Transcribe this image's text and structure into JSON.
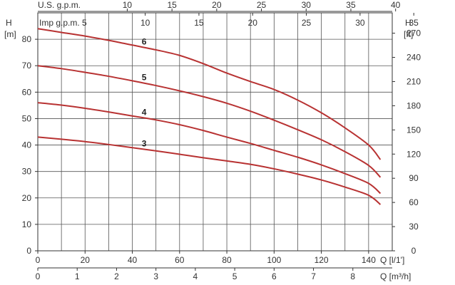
{
  "chart_data": {
    "type": "line",
    "x": [
      0,
      10,
      20,
      30,
      40,
      50,
      60,
      70,
      80,
      90,
      100,
      110,
      120,
      130,
      140,
      145
    ],
    "series": [
      {
        "name": "3",
        "values": [
          43,
          42.2,
          41.3,
          40.2,
          39,
          37.8,
          36.5,
          35.2,
          34,
          32.7,
          31,
          29,
          26.8,
          24.1,
          21,
          17.5
        ]
      },
      {
        "name": "4",
        "values": [
          56,
          55.1,
          53.9,
          52.5,
          51,
          49.5,
          47.7,
          45.5,
          43,
          40.6,
          38,
          35.4,
          32.5,
          29.2,
          25.5,
          21.7
        ]
      },
      {
        "name": "5",
        "values": [
          70,
          68.9,
          67.5,
          66,
          64.3,
          62.5,
          60.5,
          58.3,
          55.8,
          52.8,
          49.4,
          45.8,
          42,
          37.5,
          32.3,
          27.8
        ]
      },
      {
        "name": "6",
        "values": [
          84,
          82.6,
          81.2,
          79.6,
          77.8,
          76,
          73.9,
          70.8,
          67.2,
          64,
          61,
          57,
          52.2,
          46.5,
          40,
          34.5
        ]
      }
    ],
    "line_color": "#b83232",
    "xlim": [
      0,
      150
    ],
    "ylim": [
      0,
      90
    ],
    "y_ticks": [
      0,
      10,
      20,
      30,
      40,
      50,
      60,
      70,
      80
    ],
    "y_label": "H",
    "y_unit": "[m]",
    "right_axis": {
      "label": "H",
      "unit": "[ft]",
      "ticks": [
        0,
        30,
        60,
        90,
        120,
        150,
        180,
        210,
        240,
        270
      ],
      "factor": 3.28084
    },
    "x_ticks": [
      0,
      20,
      40,
      60,
      80,
      100,
      120,
      140
    ],
    "x_label": "Q [l/1']",
    "bottom2_axis": {
      "label": "Q [m³/h]",
      "ticks": [
        "0",
        "1",
        "2",
        "3",
        "4",
        "5",
        "6",
        "7",
        "8"
      ],
      "factor": 16.6667
    },
    "top_axis_us": {
      "label": "U.S. g.p.m.",
      "ticks": [
        "10",
        "15",
        "20",
        "25",
        "30",
        "35",
        "40"
      ],
      "factor": 3.78541
    },
    "top_axis_imp": {
      "label": "Imp g.p.m. 5",
      "ticks": [
        "10",
        "15",
        "20",
        "25",
        "30",
        "35"
      ],
      "factor": 4.54609
    },
    "grid": true
  }
}
